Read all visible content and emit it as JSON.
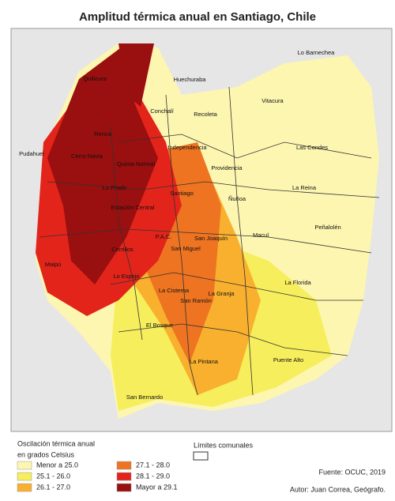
{
  "title": "Amplitud térmica anual en Santiago, Chile",
  "communes": [
    "Lo Barnechea",
    "Quilicura",
    "Huechuraba",
    "Vitacura",
    "Conchalí",
    "Recoleta",
    "Renca",
    "Independencia",
    "Las Condes",
    "Pudahuel",
    "Cerro Navia",
    "Quinta Normal",
    "Providencia",
    "Lo Prado",
    "Santiago",
    "La Reina",
    "Ñuñoa",
    "Estación Central",
    "Peñalolén",
    "P.A.C.",
    "San Joaquín",
    "Macul",
    "Cerrillos",
    "San Miguel",
    "Maipú",
    "Lo Espejo",
    "La Florida",
    "La Cisterna",
    "La Granja",
    "San Ramón",
    "El Bosque",
    "Puente Alto",
    "La Pintana",
    "San Bernardo"
  ],
  "legend": {
    "title": [
      "Oscilación térmica anual",
      "en grados Celsius"
    ],
    "items": [
      {
        "name": "Menor a 25.0",
        "color": "#fdf6b0"
      },
      {
        "name": "25.1 - 26.0",
        "color": "#f6ee5c"
      },
      {
        "name": "26.1 - 27.0",
        "color": "#f8b02e"
      },
      {
        "name": "27.1 - 28.0",
        "color": "#ee7421"
      },
      {
        "name": "28.1 - 29.0",
        "color": "#e2241b"
      },
      {
        "name": "Mayor a 29.1",
        "color": "#9a0f0f"
      }
    ],
    "boundaries": "Límites comunales"
  },
  "source": "Fuente: OCUC, 2019",
  "author": "Autor: Juan Correa, Geógrafo."
}
